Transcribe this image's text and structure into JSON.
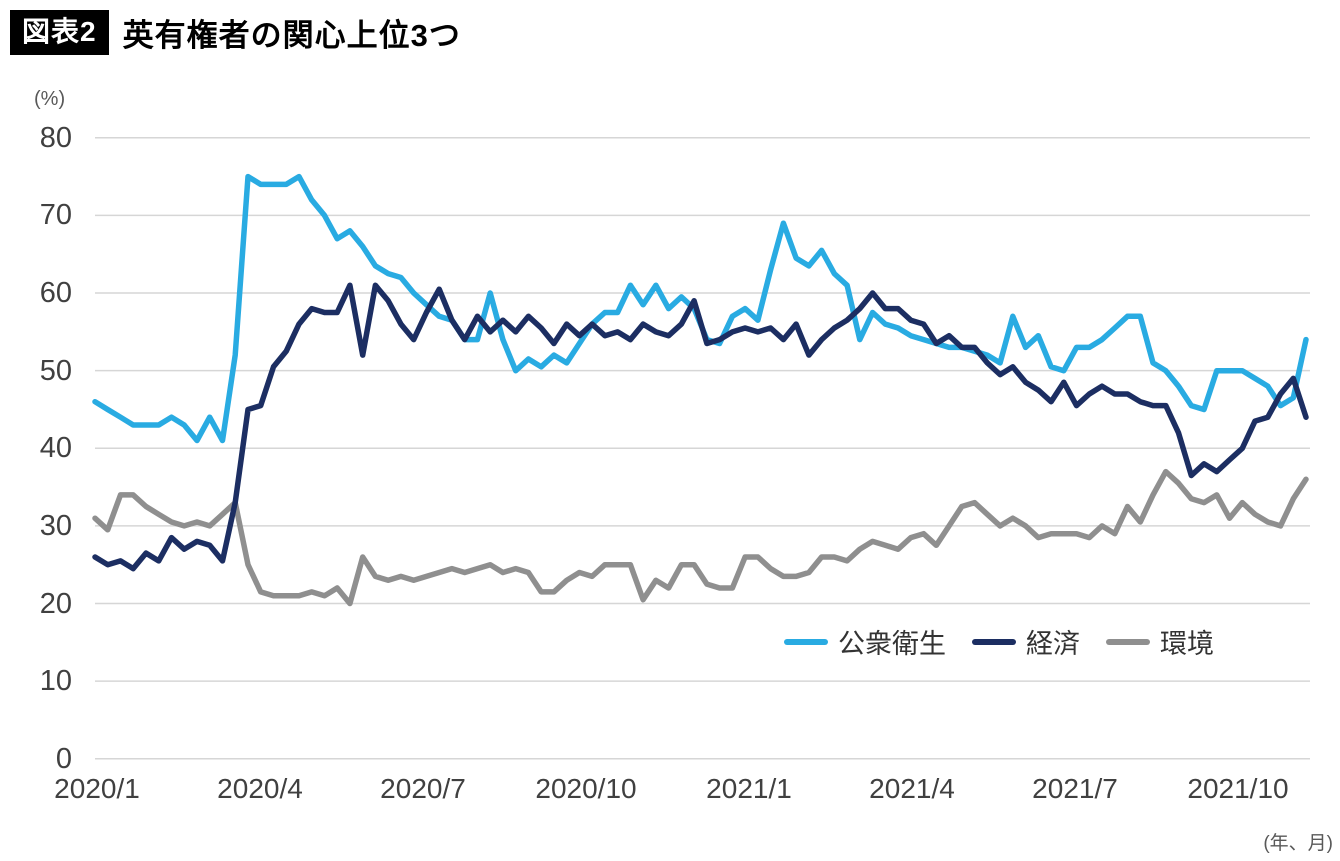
{
  "figure": {
    "tag": "図表2",
    "title": "英有権者の関心上位3つ"
  },
  "chart_data": {
    "type": "line",
    "title": "英有権者の関心上位3つ",
    "y_axis": {
      "unit_label": "(%)",
      "ticks": [
        0,
        10,
        20,
        30,
        40,
        50,
        60,
        70,
        80
      ],
      "range": [
        0,
        80
      ]
    },
    "x_axis": {
      "note": "(年、月)",
      "tick_labels": [
        "2020/1",
        "2020/4",
        "2020/7",
        "2020/10",
        "2021/1",
        "2021/4",
        "2021/7",
        "2021/10"
      ],
      "frequency": "weekly",
      "start": "2020/1",
      "end": "2021/11"
    },
    "grid": "horizontal-only",
    "legend_position": "inside-right-lower",
    "series": [
      {
        "name": "公衆衛生",
        "key": "line-public-health",
        "color": "#29ABE2",
        "values": [
          46,
          45,
          44,
          43,
          43,
          43,
          44,
          43,
          41,
          44,
          41,
          52,
          75,
          74,
          74,
          74,
          75,
          72,
          70,
          67,
          68,
          66,
          63.5,
          62.5,
          62,
          60,
          58.5,
          57,
          56.5,
          54,
          54,
          60,
          54,
          50,
          51.5,
          50.5,
          52,
          51,
          53.5,
          56,
          57.5,
          57.5,
          61,
          58.5,
          61,
          58,
          59.5,
          58,
          54,
          53.5,
          57,
          58,
          56.5,
          63,
          69,
          64.5,
          63.5,
          65.5,
          62.5,
          61,
          54,
          57.5,
          56,
          55.5,
          54.5,
          54,
          53.5,
          53,
          53,
          52.5,
          52,
          51,
          57,
          53,
          54.5,
          50.5,
          50,
          53,
          53,
          54,
          55.5,
          57,
          57,
          51,
          50,
          48,
          45.5,
          45,
          50,
          50,
          50,
          49,
          48,
          45.5,
          46.5,
          54
        ]
      },
      {
        "name": "経済",
        "key": "line-economy",
        "color": "#1C2E62",
        "values": [
          26,
          25,
          25.5,
          24.5,
          26.5,
          25.5,
          28.5,
          27,
          28,
          27.5,
          25.5,
          33,
          45,
          45.5,
          50.5,
          52.5,
          56,
          58,
          57.5,
          57.5,
          61,
          52,
          61,
          59,
          56,
          54,
          57.5,
          60.5,
          56.5,
          54,
          57,
          55,
          56.5,
          55,
          57,
          55.5,
          53.5,
          56,
          54.5,
          56,
          54.5,
          55,
          54,
          56,
          55,
          54.5,
          56,
          59,
          53.5,
          54,
          55,
          55.5,
          55,
          55.5,
          54,
          56,
          52,
          54,
          55.5,
          56.5,
          58,
          60,
          58,
          58,
          56.5,
          56,
          53.5,
          54.5,
          53,
          53,
          51,
          49.5,
          50.5,
          48.5,
          47.5,
          46,
          48.5,
          45.5,
          47,
          48,
          47,
          47,
          46,
          45.5,
          45.5,
          42,
          36.5,
          38,
          37,
          38.5,
          40,
          43.5,
          44,
          47,
          49,
          44
        ]
      },
      {
        "name": "環境",
        "key": "line-environment",
        "color": "#8F8F8F",
        "values": [
          31,
          29.5,
          34,
          34,
          32.5,
          31.5,
          30.5,
          30,
          30.5,
          30,
          31.5,
          33,
          25,
          21.5,
          21,
          21,
          21,
          21.5,
          21,
          22,
          20,
          26,
          23.5,
          23,
          23.5,
          23,
          23.5,
          24,
          24.5,
          24,
          24.5,
          25,
          24,
          24.5,
          24,
          21.5,
          21.5,
          23,
          24,
          23.5,
          25,
          25,
          25,
          20.5,
          23,
          22,
          25,
          25,
          22.5,
          22,
          22,
          26,
          26,
          24.5,
          23.5,
          23.5,
          24,
          26,
          26,
          25.5,
          27,
          28,
          27.5,
          27,
          28.5,
          29,
          27.5,
          30,
          32.5,
          33,
          31.5,
          30,
          31,
          30,
          28.5,
          29,
          29,
          29,
          28.5,
          30,
          29,
          32.5,
          30.5,
          34,
          37,
          35.5,
          33.5,
          33,
          34,
          31,
          33,
          31.5,
          30.5,
          30,
          33.5,
          36
        ]
      }
    ]
  },
  "colors": {
    "accent_public_health": "#29ABE2",
    "accent_economy": "#1C2E62",
    "accent_environment": "#8F8F8F",
    "gridline": "#D6D6D6",
    "axis_text": "#404040",
    "secondary_text": "#595959",
    "title_chip_bg": "#000000",
    "title_chip_text": "#FFFFFF"
  }
}
